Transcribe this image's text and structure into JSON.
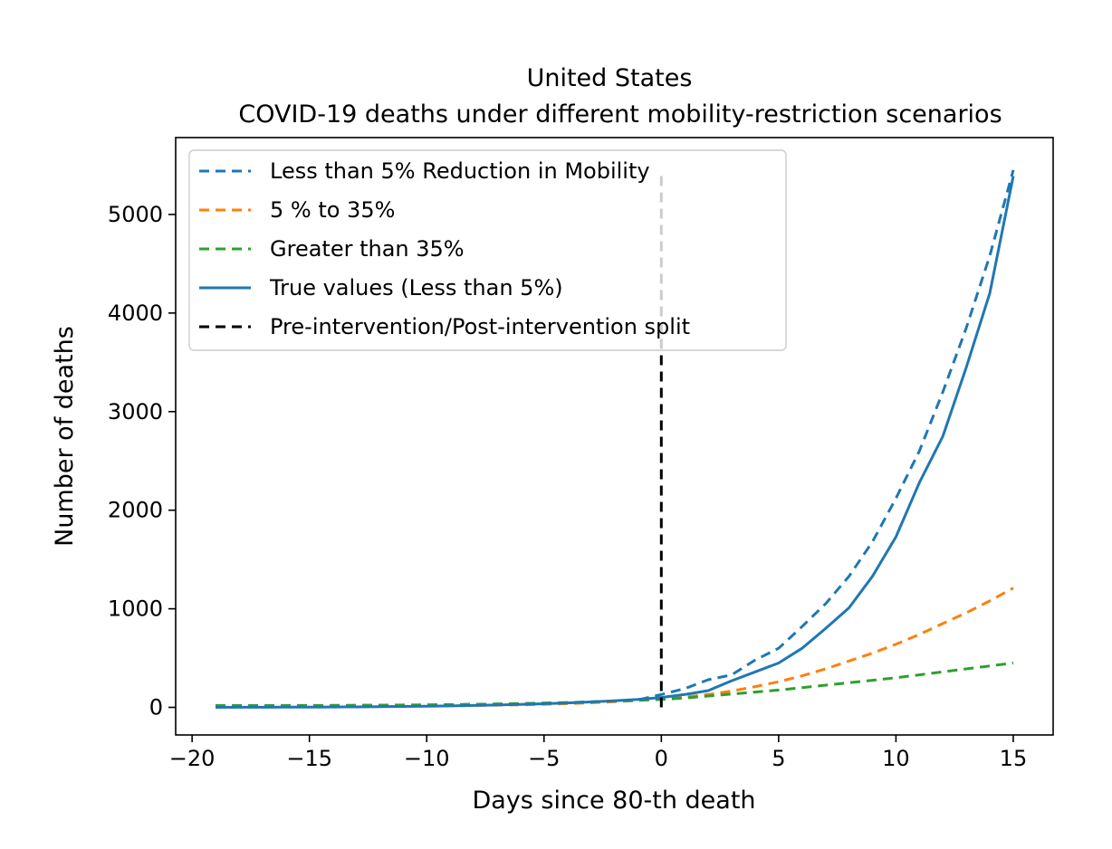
{
  "chart_data": {
    "type": "line",
    "title": "United States",
    "subtitle": "COVID-19 deaths under different mobility-restriction scenarios",
    "xlabel": "Days since 80-th death",
    "ylabel": "Number of deaths",
    "xlim": [
      -20.7,
      16.7
    ],
    "ylim": [
      -280,
      5780
    ],
    "xticks": [
      -20,
      -15,
      -10,
      -5,
      0,
      5,
      10,
      15
    ],
    "xtick_labels": [
      "−20",
      "−15",
      "−10",
      "−5",
      "0",
      "5",
      "10",
      "15"
    ],
    "yticks": [
      0,
      1000,
      2000,
      3000,
      4000,
      5000
    ],
    "ytick_labels": [
      "0",
      "1000",
      "2000",
      "3000",
      "4000",
      "5000"
    ],
    "grid": false,
    "legend_position": "upper-left",
    "series": [
      {
        "name": "Less than 5% Reduction in  Mobility",
        "color": "#1f77b4",
        "style": "dashed",
        "x": [
          -19,
          -18,
          -17,
          -16,
          -15,
          -14,
          -13,
          -12,
          -11,
          -10,
          -9,
          -8,
          -7,
          -6,
          -5,
          -4,
          -3,
          -2,
          -1,
          0,
          1,
          2,
          3,
          4,
          5,
          6,
          7,
          8,
          9,
          10,
          11,
          12,
          13,
          14,
          15
        ],
        "y": [
          15,
          15,
          16,
          16,
          17,
          18,
          19,
          20,
          22,
          24,
          26,
          29,
          33,
          37,
          42,
          48,
          55,
          64,
          75,
          130,
          190,
          280,
          330,
          480,
          600,
          820,
          1050,
          1330,
          1680,
          2120,
          2600,
          3200,
          3850,
          4580,
          5450
        ]
      },
      {
        "name": "5 % to 35%",
        "color": "#ff7f0e",
        "style": "dashed",
        "x": [
          -19,
          -18,
          -17,
          -16,
          -15,
          -14,
          -13,
          -12,
          -11,
          -10,
          -9,
          -8,
          -7,
          -6,
          -5,
          -4,
          -3,
          -2,
          -1,
          0,
          1,
          2,
          3,
          4,
          5,
          6,
          7,
          8,
          9,
          10,
          11,
          12,
          13,
          14,
          15
        ],
        "y": [
          8,
          8,
          9,
          9,
          10,
          10,
          11,
          12,
          13,
          15,
          17,
          19,
          22,
          26,
          31,
          38,
          46,
          57,
          70,
          85,
          105,
          130,
          165,
          210,
          260,
          320,
          390,
          470,
          550,
          640,
          740,
          850,
          960,
          1080,
          1210
        ]
      },
      {
        "name": "Greater than 35%",
        "color": "#2ca02c",
        "style": "dashed",
        "x": [
          -19,
          -18,
          -17,
          -16,
          -15,
          -14,
          -13,
          -12,
          -11,
          -10,
          -9,
          -8,
          -7,
          -6,
          -5,
          -4,
          -3,
          -2,
          -1,
          0,
          1,
          2,
          3,
          4,
          5,
          6,
          7,
          8,
          9,
          10,
          11,
          12,
          13,
          14,
          15
        ],
        "y": [
          18,
          18,
          18,
          19,
          19,
          20,
          21,
          22,
          24,
          26,
          28,
          31,
          34,
          38,
          43,
          49,
          56,
          64,
          72,
          80,
          95,
          115,
          135,
          155,
          175,
          200,
          225,
          250,
          275,
          300,
          330,
          360,
          390,
          420,
          450
        ]
      },
      {
        "name": "True values (Less than 5%)",
        "color": "#1f77b4",
        "style": "solid",
        "x": [
          -19,
          -18,
          -17,
          -16,
          -15,
          -14,
          -13,
          -12,
          -11,
          -10,
          -9,
          -8,
          -7,
          -6,
          -5,
          -4,
          -3,
          -2,
          -1,
          0,
          1,
          2,
          3,
          4,
          5,
          6,
          7,
          8,
          9,
          10,
          11,
          12,
          13,
          14,
          15
        ],
        "y": [
          0,
          1,
          1,
          2,
          3,
          4,
          5,
          7,
          9,
          12,
          15,
          19,
          24,
          30,
          37,
          45,
          55,
          67,
          80,
          100,
          130,
          170,
          270,
          360,
          450,
          600,
          800,
          1010,
          1330,
          1730,
          2280,
          2750,
          3450,
          4200,
          5390
        ]
      },
      {
        "name": "Pre-intervention/Post-intervention split",
        "color": "#000000",
        "style": "dashed",
        "x": [
          0,
          0
        ],
        "y": [
          0,
          5390
        ]
      }
    ]
  }
}
